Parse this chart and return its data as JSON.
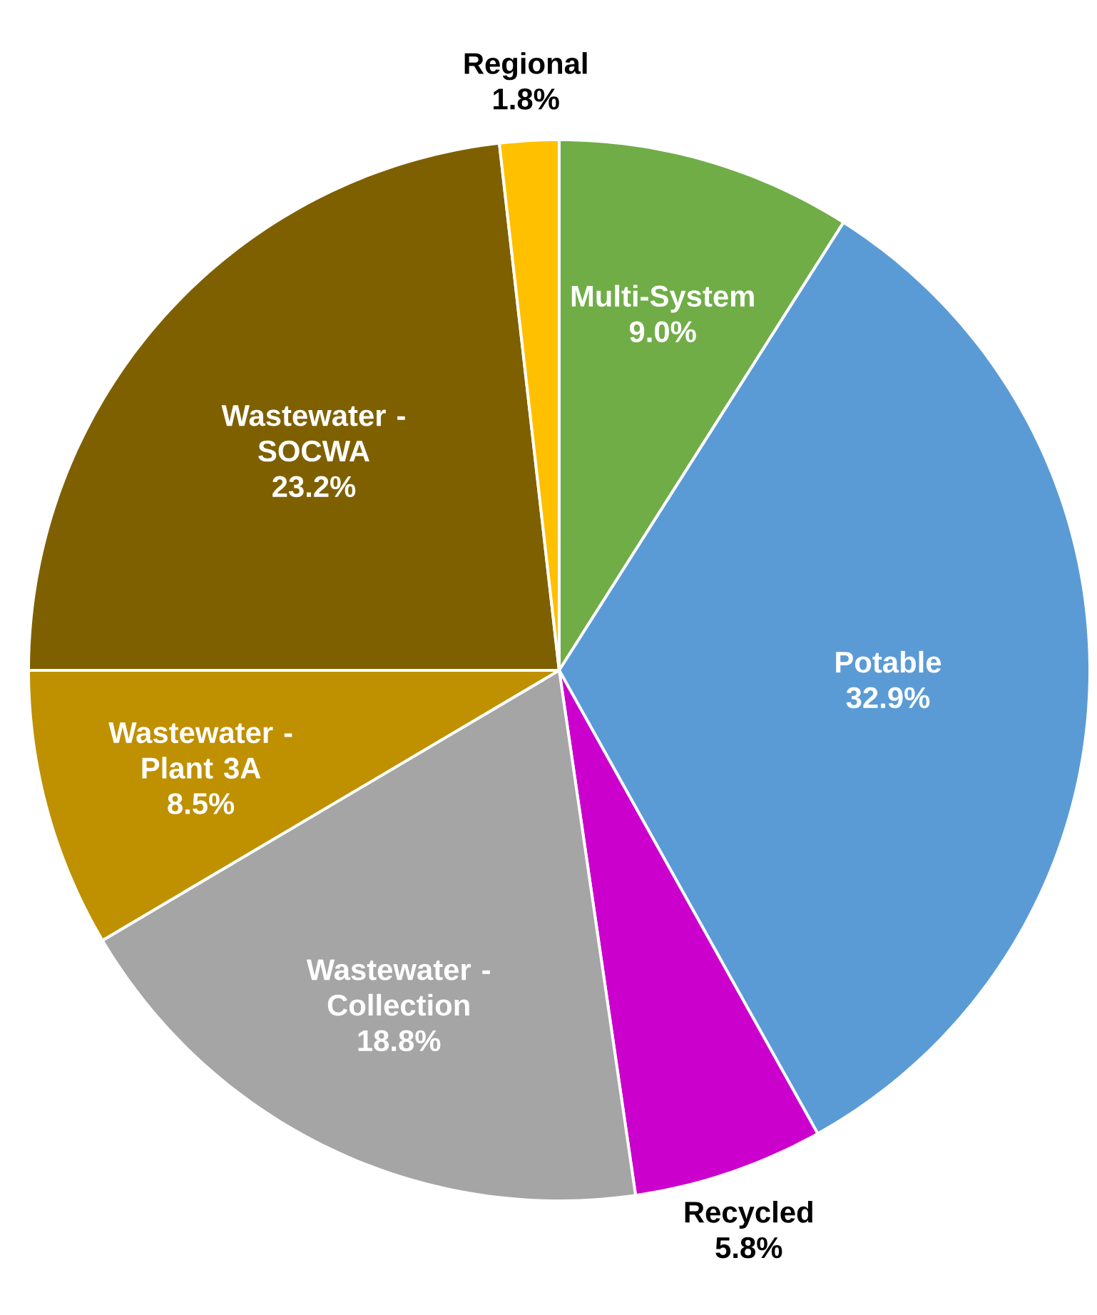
{
  "chart_data": {
    "type": "pie",
    "categories": [
      "Multi-System",
      "Potable",
      "Recycled",
      "Wastewater - Collection",
      "Wastewater - Plant 3A",
      "Wastewater - SOCWA",
      "Regional"
    ],
    "values": [
      9.0,
      32.9,
      5.8,
      18.8,
      8.5,
      23.2,
      1.8
    ],
    "colors": [
      "#70ad47",
      "#5b9bd5",
      "#cc00cc",
      "#a5a5a5",
      "#bf9000",
      "#7f6000",
      "#ffc000"
    ],
    "value_labels": [
      "9.0%",
      "32.9%",
      "5.8%",
      "18.8%",
      "8.5%",
      "23.2%",
      "1.8%"
    ]
  }
}
